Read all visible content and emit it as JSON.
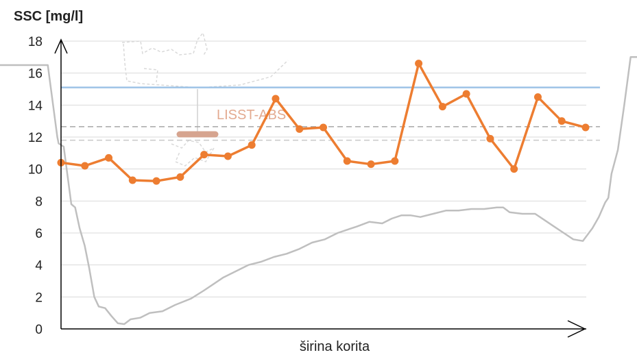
{
  "chart_data": {
    "type": "line",
    "ylabel": "SSC  [mg/l]",
    "xlabel": "širina korita",
    "annotation": "LISST-ABS",
    "ylim": [
      0,
      18
    ],
    "yticks": [
      0,
      2,
      4,
      6,
      8,
      10,
      12,
      14,
      16,
      18
    ],
    "grid": true,
    "series": [
      {
        "color": "#ed7d31",
        "values": [
          10.4,
          10.2,
          10.7,
          9.3,
          9.25,
          9.5,
          10.9,
          10.8,
          11.5,
          14.4,
          12.5,
          12.6,
          10.5,
          10.3,
          10.5,
          16.6,
          13.9,
          14.7,
          11.9,
          10.0,
          14.5,
          13.0,
          12.6
        ]
      }
    ],
    "reference_lines": [
      {
        "value": 15.1,
        "color": "#9dc3e6",
        "style": "solid"
      },
      {
        "value": 12.65,
        "color": "#a6a6a6",
        "style": "dashed"
      },
      {
        "value": 11.8,
        "color": "#c9c9c9",
        "style": "dashed"
      }
    ],
    "bed_profile": {
      "color": "#bfbfbf",
      "points": [
        [
          0,
          16.5
        ],
        [
          0.04,
          16.5
        ],
        [
          0.075,
          16.5
        ],
        [
          0.09,
          12.0
        ],
        [
          0.092,
          11.6
        ],
        [
          0.1,
          11.4
        ],
        [
          0.112,
          7.8
        ],
        [
          0.118,
          7.6
        ],
        [
          0.125,
          6.3
        ],
        [
          0.133,
          5.2
        ],
        [
          0.14,
          3.8
        ],
        [
          0.148,
          2.0
        ],
        [
          0.155,
          1.4
        ],
        [
          0.165,
          1.3
        ],
        [
          0.175,
          0.8
        ],
        [
          0.185,
          0.35
        ],
        [
          0.195,
          0.3
        ],
        [
          0.205,
          0.6
        ],
        [
          0.22,
          0.7
        ],
        [
          0.235,
          1.0
        ],
        [
          0.255,
          1.1
        ],
        [
          0.275,
          1.5
        ],
        [
          0.3,
          1.9
        ],
        [
          0.32,
          2.4
        ],
        [
          0.335,
          2.8
        ],
        [
          0.35,
          3.2
        ],
        [
          0.37,
          3.6
        ],
        [
          0.39,
          4.0
        ],
        [
          0.41,
          4.2
        ],
        [
          0.43,
          4.5
        ],
        [
          0.45,
          4.7
        ],
        [
          0.47,
          5.0
        ],
        [
          0.49,
          5.4
        ],
        [
          0.51,
          5.6
        ],
        [
          0.53,
          6.0
        ],
        [
          0.545,
          6.2
        ],
        [
          0.56,
          6.4
        ],
        [
          0.58,
          6.7
        ],
        [
          0.6,
          6.6
        ],
        [
          0.615,
          6.9
        ],
        [
          0.63,
          7.1
        ],
        [
          0.645,
          7.1
        ],
        [
          0.66,
          7.0
        ],
        [
          0.68,
          7.2
        ],
        [
          0.7,
          7.4
        ],
        [
          0.72,
          7.4
        ],
        [
          0.74,
          7.5
        ],
        [
          0.76,
          7.5
        ],
        [
          0.78,
          7.6
        ],
        [
          0.79,
          7.6
        ],
        [
          0.8,
          7.3
        ],
        [
          0.82,
          7.2
        ],
        [
          0.84,
          7.2
        ],
        [
          0.855,
          6.8
        ],
        [
          0.87,
          6.4
        ],
        [
          0.885,
          6.0
        ],
        [
          0.9,
          5.6
        ],
        [
          0.915,
          5.5
        ],
        [
          0.93,
          6.3
        ],
        [
          0.94,
          7.0
        ],
        [
          0.95,
          7.9
        ],
        [
          0.955,
          8.2
        ],
        [
          0.96,
          9.7
        ],
        [
          0.97,
          11.2
        ],
        [
          0.98,
          14.0
        ],
        [
          0.99,
          17.0
        ],
        [
          1.0,
          17.0
        ]
      ]
    }
  }
}
